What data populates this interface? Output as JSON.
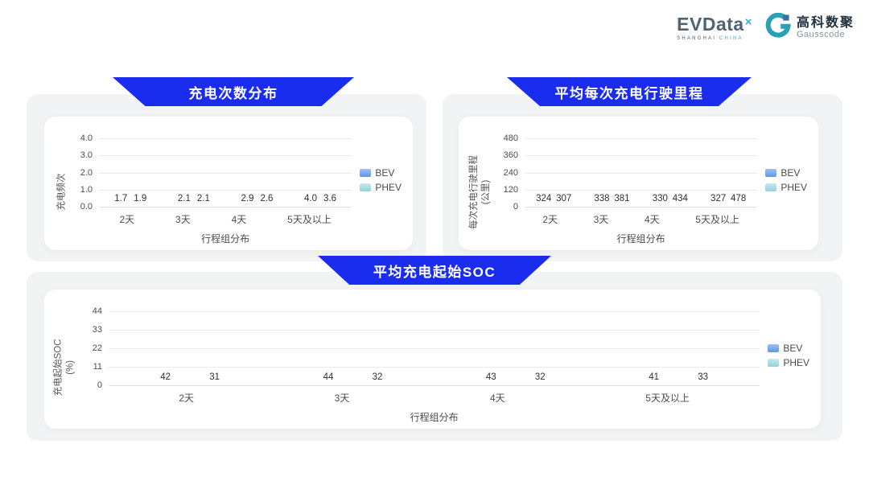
{
  "header": {
    "evdata": {
      "text": "EVData",
      "sup": "×",
      "sub_left": "SHANGHAI",
      "sub_right": "CHINA"
    },
    "gausscode": {
      "cn": "高科数聚",
      "en": "Gausscode"
    }
  },
  "legend": {
    "bev": "BEV",
    "phev": "PHEV"
  },
  "colors": {
    "banner_blue": "#1a2cee",
    "panel_gray": "#f2f3f5",
    "bev_gradient_top": "#e7f7fd",
    "bev_gradient_bottom": "#6f9ee9",
    "phev_gradient_top": "#f9ede9",
    "phev_gradient_bottom": "#9fd8de",
    "gausscode_teal": "#2aa0b5",
    "evdata_slate": "#4e6375"
  },
  "chart_data": [
    {
      "type": "bar",
      "title": "充电次数分布",
      "categories": [
        "2天",
        "3天",
        "4天",
        "5天及以上"
      ],
      "series": [
        {
          "name": "BEV",
          "values": [
            1.7,
            2.1,
            2.9,
            4.0
          ]
        },
        {
          "name": "PHEV",
          "values": [
            1.9,
            2.1,
            2.6,
            3.6
          ]
        }
      ],
      "ylabel": "充电频次",
      "ylabel2": "",
      "xlabel": "行程组分布",
      "yticks": [
        "4.0",
        "3.0",
        "2.0",
        "1.0",
        "0.0"
      ],
      "ylim": [
        0,
        4.0
      ],
      "value_decimals": 1,
      "grid": true,
      "legend_position": "right"
    },
    {
      "type": "bar",
      "title": "平均每次充电行驶里程",
      "categories": [
        "2天",
        "3天",
        "4天",
        "5天及以上"
      ],
      "series": [
        {
          "name": "BEV",
          "values": [
            324,
            338,
            330,
            327
          ]
        },
        {
          "name": "PHEV",
          "values": [
            307,
            381,
            434,
            478
          ]
        }
      ],
      "ylabel": "每次充电行驶里程",
      "ylabel2": "(公里)",
      "xlabel": "行程组分布",
      "yticks": [
        "480",
        "360",
        "240",
        "120",
        "0"
      ],
      "ylim": [
        0,
        480
      ],
      "value_decimals": 0,
      "grid": true,
      "legend_position": "right"
    },
    {
      "type": "bar",
      "title": "平均充电起始SOC",
      "categories": [
        "2天",
        "3天",
        "4天",
        "5天及以上"
      ],
      "series": [
        {
          "name": "BEV",
          "values": [
            42,
            44,
            43,
            41
          ]
        },
        {
          "name": "PHEV",
          "values": [
            31,
            32,
            32,
            33
          ]
        }
      ],
      "ylabel": "充电起始SOC",
      "ylabel2": "(%)",
      "xlabel": "行程组分布",
      "yticks": [
        "44",
        "33",
        "22",
        "11",
        "0"
      ],
      "ylim": [
        0,
        44
      ],
      "value_decimals": 0,
      "grid": true,
      "legend_position": "right"
    }
  ]
}
